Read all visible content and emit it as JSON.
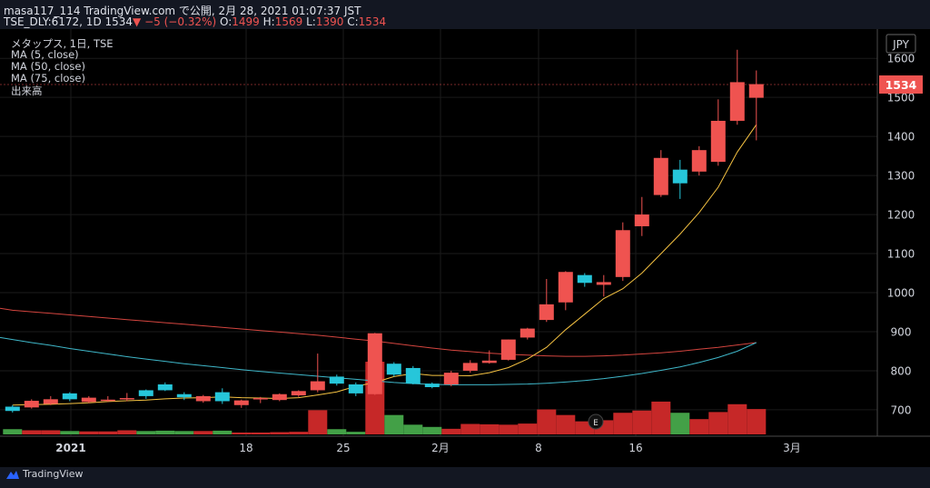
{
  "header": {
    "line1": "masa117_114 TradingView.com で公開, 2月 28, 2021 01:07:37 JST",
    "line2_symbol": "TSE_DLY:6172, 1D 1534",
    "line2_change": "−5 (−0.32%)",
    "line2_o_label": "O:",
    "line2_o": "1499",
    "line2_h_label": "H:",
    "line2_h": "1569",
    "line2_l_label": "L:",
    "line2_l": "1390",
    "line2_c_label": "C:",
    "line2_c": "1534"
  },
  "legend": {
    "title": "メタップス, 1日, TSE",
    "ma5": "MA (5, close)",
    "ma50": "MA (50, close)",
    "ma75": "MA (75, close)",
    "volume": "出来高"
  },
  "currency": "JPY",
  "last_price_label": "1534",
  "branding": "TradingView",
  "earnings_marker": "E",
  "colors": {
    "up": "#ef5350",
    "down": "#26c6da",
    "vol_up": "#c62828",
    "vol_down": "#43a047",
    "ma5": "#f5c242",
    "ma50": "#3fb7c9",
    "ma75": "#d4453f",
    "background": "#131722"
  },
  "chart_data": {
    "type": "candlestick",
    "y_axis_ticks": [
      700,
      800,
      900,
      1000,
      1100,
      1200,
      1300,
      1400,
      1500,
      1600
    ],
    "x_axis_labels": [
      "2021",
      "18",
      "25",
      "2月",
      "8",
      "16",
      "3月"
    ],
    "ylim": [
      640,
      1640
    ],
    "candles": [
      {
        "o": 708,
        "h": 712,
        "l": 693,
        "c": 697
      },
      {
        "o": 706,
        "h": 727,
        "l": 703,
        "c": 723
      },
      {
        "o": 715,
        "h": 735,
        "l": 712,
        "c": 727
      },
      {
        "o": 742,
        "h": 745,
        "l": 722,
        "c": 727
      },
      {
        "o": 720,
        "h": 735,
        "l": 717,
        "c": 731
      },
      {
        "o": 723,
        "h": 735,
        "l": 720,
        "c": 726
      },
      {
        "o": 727,
        "h": 743,
        "l": 722,
        "c": 730
      },
      {
        "o": 750,
        "h": 752,
        "l": 728,
        "c": 735
      },
      {
        "o": 765,
        "h": 770,
        "l": 748,
        "c": 750
      },
      {
        "o": 740,
        "h": 745,
        "l": 725,
        "c": 732
      },
      {
        "o": 722,
        "h": 738,
        "l": 718,
        "c": 735
      },
      {
        "o": 745,
        "h": 755,
        "l": 715,
        "c": 722
      },
      {
        "o": 712,
        "h": 726,
        "l": 705,
        "c": 724
      },
      {
        "o": 728,
        "h": 733,
        "l": 717,
        "c": 730
      },
      {
        "o": 725,
        "h": 742,
        "l": 722,
        "c": 740
      },
      {
        "o": 737,
        "h": 750,
        "l": 733,
        "c": 748
      },
      {
        "o": 750,
        "h": 844,
        "l": 745,
        "c": 773
      },
      {
        "o": 785,
        "h": 790,
        "l": 762,
        "c": 767
      },
      {
        "o": 765,
        "h": 770,
        "l": 735,
        "c": 742
      },
      {
        "o": 740,
        "h": 897,
        "l": 738,
        "c": 896
      },
      {
        "o": 818,
        "h": 822,
        "l": 785,
        "c": 790
      },
      {
        "o": 807,
        "h": 812,
        "l": 765,
        "c": 767
      },
      {
        "o": 767,
        "h": 770,
        "l": 755,
        "c": 758
      },
      {
        "o": 765,
        "h": 800,
        "l": 760,
        "c": 795
      },
      {
        "o": 800,
        "h": 827,
        "l": 795,
        "c": 820
      },
      {
        "o": 820,
        "h": 852,
        "l": 818,
        "c": 826
      },
      {
        "o": 828,
        "h": 880,
        "l": 826,
        "c": 880
      },
      {
        "o": 885,
        "h": 910,
        "l": 880,
        "c": 908
      },
      {
        "o": 930,
        "h": 1035,
        "l": 925,
        "c": 970
      },
      {
        "o": 975,
        "h": 1055,
        "l": 955,
        "c": 1053
      },
      {
        "o": 1045,
        "h": 1050,
        "l": 1015,
        "c": 1025
      },
      {
        "o": 1020,
        "h": 1045,
        "l": 990,
        "c": 1027
      },
      {
        "o": 1040,
        "h": 1180,
        "l": 1030,
        "c": 1160
      },
      {
        "o": 1170,
        "h": 1245,
        "l": 1145,
        "c": 1200
      },
      {
        "o": 1250,
        "h": 1365,
        "l": 1245,
        "c": 1345
      },
      {
        "o": 1315,
        "h": 1340,
        "l": 1240,
        "c": 1280
      },
      {
        "o": 1310,
        "h": 1375,
        "l": 1300,
        "c": 1365
      },
      {
        "o": 1335,
        "h": 1495,
        "l": 1325,
        "c": 1440
      },
      {
        "o": 1440,
        "h": 1622,
        "l": 1430,
        "c": 1539
      },
      {
        "o": 1499,
        "h": 1569,
        "l": 1390,
        "c": 1534
      }
    ],
    "volume": [
      {
        "v": 0.14,
        "up": false
      },
      {
        "v": 0.11,
        "up": true
      },
      {
        "v": 0.11,
        "up": true
      },
      {
        "v": 0.09,
        "up": false
      },
      {
        "v": 0.08,
        "up": true
      },
      {
        "v": 0.08,
        "up": true
      },
      {
        "v": 0.11,
        "up": true
      },
      {
        "v": 0.09,
        "up": false
      },
      {
        "v": 0.1,
        "up": false
      },
      {
        "v": 0.09,
        "up": false
      },
      {
        "v": 0.09,
        "up": true
      },
      {
        "v": 0.1,
        "up": false
      },
      {
        "v": 0.05,
        "up": true
      },
      {
        "v": 0.05,
        "up": true
      },
      {
        "v": 0.06,
        "up": true
      },
      {
        "v": 0.07,
        "up": true
      },
      {
        "v": 0.65,
        "up": true
      },
      {
        "v": 0.14,
        "up": false
      },
      {
        "v": 0.07,
        "up": false
      },
      {
        "v": 1.95,
        "up": true
      },
      {
        "v": 0.52,
        "up": false
      },
      {
        "v": 0.26,
        "up": false
      },
      {
        "v": 0.2,
        "up": false
      },
      {
        "v": 0.15,
        "up": true
      },
      {
        "v": 0.28,
        "up": true
      },
      {
        "v": 0.27,
        "up": true
      },
      {
        "v": 0.26,
        "up": true
      },
      {
        "v": 0.29,
        "up": true
      },
      {
        "v": 0.67,
        "up": true
      },
      {
        "v": 0.52,
        "up": true
      },
      {
        "v": 0.35,
        "up": true
      },
      {
        "v": 0.38,
        "up": true
      },
      {
        "v": 0.58,
        "up": true
      },
      {
        "v": 0.64,
        "up": true
      },
      {
        "v": 0.88,
        "up": true
      },
      {
        "v": 0.58,
        "up": false
      },
      {
        "v": 0.41,
        "up": true
      },
      {
        "v": 0.6,
        "up": true
      },
      {
        "v": 0.81,
        "up": true
      },
      {
        "v": 0.68,
        "up": true
      }
    ],
    "ma5": [
      712,
      713,
      714,
      716,
      718,
      721,
      723,
      725,
      728,
      730,
      731,
      733,
      731,
      730,
      729,
      731,
      738,
      746,
      760,
      770,
      785,
      793,
      788,
      788,
      787,
      795,
      808,
      830,
      860,
      905,
      945,
      985,
      1010,
      1050,
      1100,
      1150,
      1205,
      1270,
      1360,
      1430
    ],
    "ma50": [
      880,
      872,
      865,
      857,
      850,
      843,
      836,
      830,
      824,
      818,
      813,
      808,
      803,
      798,
      794,
      790,
      786,
      782,
      778,
      774,
      770,
      767,
      765,
      764,
      764,
      764,
      765,
      766,
      768,
      771,
      775,
      780,
      786,
      793,
      801,
      810,
      821,
      834,
      850,
      872
    ],
    "ma75": [
      955,
      951,
      947,
      943,
      939,
      935,
      931,
      927,
      923,
      919,
      915,
      911,
      907,
      903,
      899,
      895,
      891,
      886,
      881,
      876,
      870,
      864,
      858,
      853,
      849,
      845,
      842,
      840,
      838,
      837,
      837,
      838,
      840,
      843,
      846,
      850,
      855,
      860,
      866,
      872
    ]
  }
}
